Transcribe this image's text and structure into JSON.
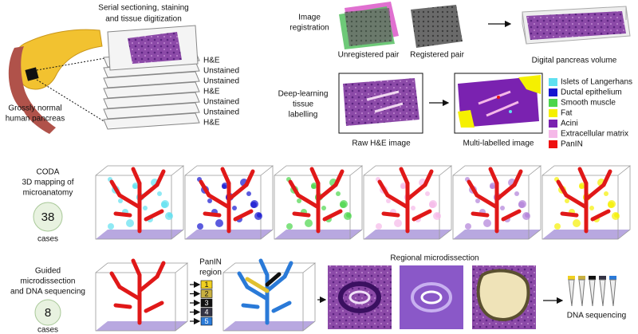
{
  "header": {
    "sectioning_label": [
      "Serial sectioning, staining",
      "and tissue digitization"
    ],
    "pancreas_label": [
      "Grossly normal",
      "human pancreas"
    ],
    "stains": [
      "H&E",
      "Unstained",
      "Unstained",
      "H&E",
      "Unstained",
      "Unstained",
      "H&E"
    ]
  },
  "registration": {
    "label": [
      "Image",
      "registration"
    ],
    "unregistered": "Unregistered pair",
    "registered": "Registered pair",
    "volume": "Digital pancreas volume"
  },
  "labelling": {
    "label": [
      "Deep-learning",
      "tissue",
      "labelling"
    ],
    "raw": "Raw H&E image",
    "labelled": "Multi-labelled image",
    "legend": [
      {
        "name": "Islets of Langerhans",
        "color": "#5fe0f0"
      },
      {
        "name": "Ductal epithelium",
        "color": "#1515d0"
      },
      {
        "name": "Smooth muscle",
        "color": "#4cd64c"
      },
      {
        "name": "Fat",
        "color": "#f5f000"
      },
      {
        "name": "Acini",
        "color": "#7a22b0"
      },
      {
        "name": "Extracellular matrix",
        "color": "#f5b8e8"
      },
      {
        "name": "PanIN",
        "color": "#ee1111"
      }
    ]
  },
  "coda": {
    "label": [
      "CODA",
      "3D mapping of",
      "microanatomy"
    ],
    "count": "38",
    "unit": "cases"
  },
  "dissection": {
    "label": [
      "Guided",
      "microdissection",
      "and DNA sequencing"
    ],
    "count": "8",
    "unit": "cases",
    "region_label": [
      "PanIN",
      "region"
    ],
    "regions": [
      {
        "name": "1",
        "color": "#f0d020"
      },
      {
        "name": "2",
        "color": "#c8b040"
      },
      {
        "name": "3",
        "color": "#111111"
      },
      {
        "name": "4",
        "color": "#333344"
      },
      {
        "name": "5",
        "color": "#2a7ad8"
      }
    ],
    "microdissection": "Regional microdissection",
    "sequencing": "DNA sequencing"
  }
}
